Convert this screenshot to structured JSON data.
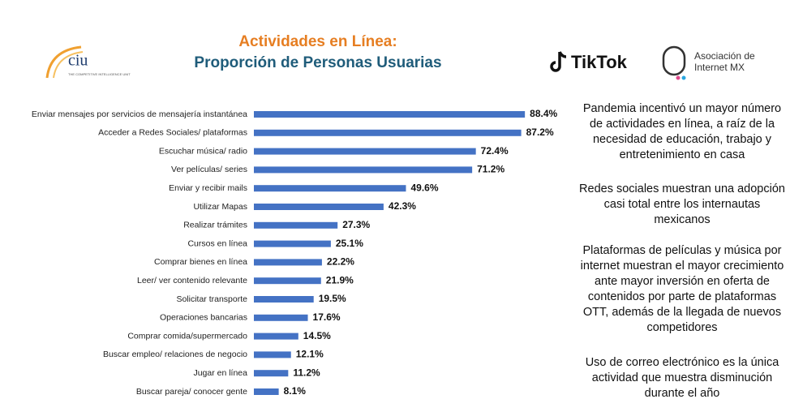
{
  "chart_data": {
    "type": "hbar",
    "title": "Actividades en Línea:",
    "subtitle": "Proporción de Personas Usuarias",
    "color": "#4472c4",
    "categories": [
      "Enviar mensajes por servicios de mensajería instantánea",
      "Acceder a Redes Sociales/ plataformas",
      "Escuchar música/ radio",
      "Ver películas/ series",
      "Enviar y recibir mails",
      "Utilizar Mapas",
      "Realizar trámites",
      "Cursos en línea",
      "Comprar bienes en línea",
      "Leer/ ver contenido relevante",
      "Solicitar transporte",
      "Operaciones bancarias",
      "Comprar comida/supermercado",
      "Buscar empleo/ relaciones de negocio",
      "Jugar en línea",
      "Buscar pareja/ conocer gente"
    ],
    "values": [
      88.4,
      87.2,
      72.4,
      71.2,
      49.6,
      42.3,
      27.3,
      25.1,
      22.2,
      21.9,
      19.5,
      17.6,
      14.5,
      12.1,
      11.2,
      8.1
    ],
    "value_labels": [
      "88.4%",
      "87.2%",
      "72.4%",
      "71.2%",
      "49.6%",
      "42.3%",
      "27.3%",
      "25.1%",
      "22.2%",
      "21.9%",
      "19.5%",
      "17.6%",
      "14.5%",
      "12.1%",
      "11.2%",
      "8.1%"
    ]
  },
  "logos": {
    "ciu": "ciu",
    "ciu_tagline": "THE COMPETITIVE INTELLIGENCE UNIT",
    "tiktok": "TikTok",
    "amipci_line1": "Asociación de",
    "amipci_line2": "Internet MX"
  },
  "notes": [
    "Pandemia incentivó un mayor número de actividades en línea, a raíz de la necesidad de educación, trabajo y entretenimiento en casa",
    "Redes sociales muestran una adopción casi total entre los internautas mexicanos",
    "Plataformas de películas y música por internet muestran el mayor crecimiento ante mayor inversión en oferta de contenidos por parte de plataformas OTT, además de la llegada de nuevos competidores",
    "Uso de correo electrónico es la única actividad que muestra disminución durante el año"
  ]
}
